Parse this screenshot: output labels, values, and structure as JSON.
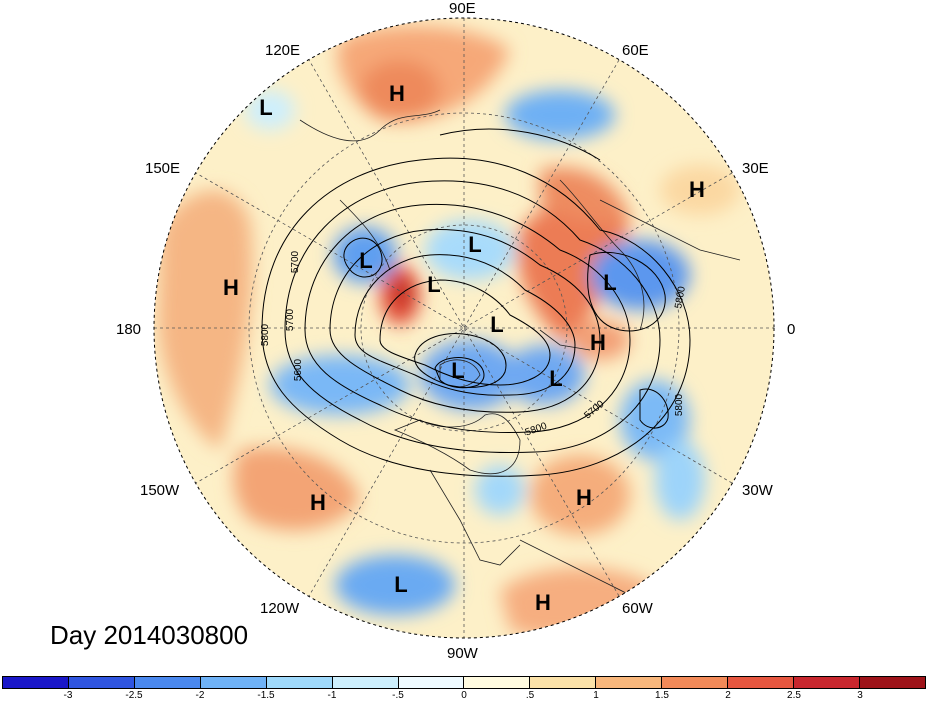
{
  "title": "Day 2014030800",
  "longitude_labels": {
    "top": "90E",
    "e60": "60E",
    "e30": "30E",
    "right": "0",
    "w30": "30W",
    "w60": "60W",
    "bottom": "90W",
    "w120": "120W",
    "w150": "150W",
    "left": "180",
    "e150": "150E",
    "e120": "120E"
  },
  "pressure_centers": [
    {
      "type": "H"
    },
    {
      "type": "L"
    },
    {
      "type": "H"
    },
    {
      "type": "H"
    },
    {
      "type": "L"
    },
    {
      "type": "L"
    },
    {
      "type": "L"
    },
    {
      "type": "L"
    },
    {
      "type": "L"
    },
    {
      "type": "H"
    },
    {
      "type": "L"
    },
    {
      "type": "L"
    },
    {
      "type": "H"
    },
    {
      "type": "H"
    },
    {
      "type": "L"
    },
    {
      "type": "H"
    }
  ],
  "contour_labels": [
    "5700",
    "5700",
    "5800",
    "5600",
    "5800",
    "5700",
    "5800",
    "5800"
  ],
  "colorbar": {
    "colors": [
      "#1a17c9",
      "#2f55e0",
      "#4a88ee",
      "#6fb2f6",
      "#9fd9fb",
      "#cdeffd",
      "#eefaff",
      "#fffbe0",
      "#fbe2a9",
      "#f8b77c",
      "#f28a59",
      "#e6563f",
      "#c8272e",
      "#9e1319"
    ],
    "tick_labels": [
      "-3",
      "-2.5",
      "-2",
      "-1.5",
      "-1",
      "-.5",
      "0",
      ".5",
      "1",
      "1.5",
      "2",
      "2.5",
      "3"
    ]
  }
}
